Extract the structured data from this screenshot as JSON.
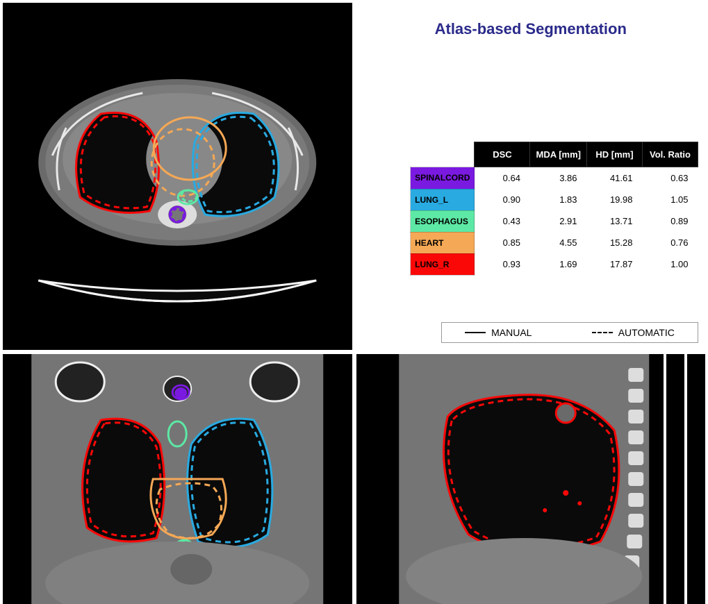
{
  "title": {
    "text": "Atlas-based Segmentation",
    "color": "#2a2a8a",
    "fontsize": 22
  },
  "structures": [
    {
      "name": "SPINALCORD",
      "color": "#7a1ae0",
      "dsc": "0.64",
      "mda": "3.86",
      "hd": "41.61",
      "vol": "0.63"
    },
    {
      "name": "LUNG_L",
      "color": "#29aae1",
      "dsc": "0.90",
      "mda": "1.83",
      "hd": "19.98",
      "vol": "1.05"
    },
    {
      "name": "ESOPHAGUS",
      "color": "#5de8a5",
      "dsc": "0.43",
      "mda": "2.91",
      "hd": "13.71",
      "vol": "0.89"
    },
    {
      "name": "HEART",
      "color": "#f5a855",
      "dsc": "0.85",
      "mda": "4.55",
      "hd": "15.28",
      "vol": "0.76"
    },
    {
      "name": "LUNG_R",
      "color": "#fa0808",
      "dsc": "0.93",
      "mda": "1.69",
      "hd": "17.87",
      "vol": "1.00"
    }
  ],
  "table_headers": {
    "dsc": "DSC",
    "mda": "MDA [mm]",
    "hd": "HD [mm]",
    "vol": "Vol. Ratio"
  },
  "legend": {
    "manual": "MANUAL",
    "automatic": "AUTOMATIC"
  },
  "body_color": "#7a7a7a",
  "bone_color": "#f0f0f0",
  "tissue_dark": "#2a2a2a",
  "contour_stroke_width": 3,
  "contour_dash": "8,6"
}
